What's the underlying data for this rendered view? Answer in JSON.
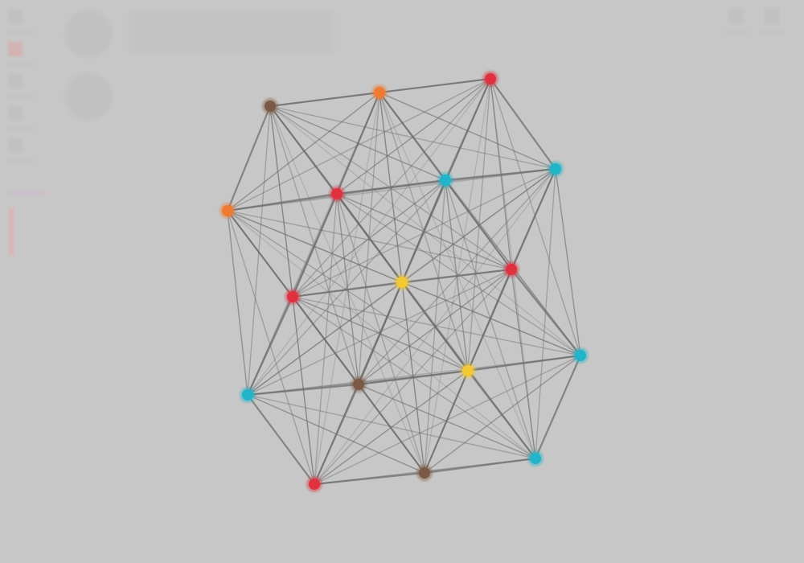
{
  "graph": {
    "node_colors": {
      "red": "#e0313f",
      "orange": "#f07a32",
      "brown": "#7a5a44",
      "cyan": "#22b4c9",
      "yellow": "#f1c933"
    },
    "edge_color": "#6e6e6e",
    "background": "#c7c7c7",
    "nodes": [
      {
        "id": "n1",
        "color": "red"
      },
      {
        "id": "n2",
        "color": "orange"
      },
      {
        "id": "n3",
        "color": "brown"
      },
      {
        "id": "n4",
        "color": "cyan"
      },
      {
        "id": "n5",
        "color": "cyan"
      },
      {
        "id": "n6",
        "color": "red"
      },
      {
        "id": "n7",
        "color": "orange"
      },
      {
        "id": "n8",
        "color": "red"
      },
      {
        "id": "n9",
        "color": "yellow"
      },
      {
        "id": "n10",
        "color": "red"
      },
      {
        "id": "n11",
        "color": "cyan"
      },
      {
        "id": "n12",
        "color": "yellow"
      },
      {
        "id": "n13",
        "color": "brown"
      },
      {
        "id": "n14",
        "color": "cyan"
      },
      {
        "id": "n15",
        "color": "cyan"
      },
      {
        "id": "n16",
        "color": "brown"
      },
      {
        "id": "n17",
        "color": "red"
      }
    ],
    "edges_all_pairs": true
  },
  "ui": {
    "panel_icons": [
      "tool-icon",
      "tool-icon",
      "tool-icon",
      "tool-icon",
      "tool-icon"
    ],
    "top_right_icons": [
      "settings-icon",
      "fullscreen-icon"
    ]
  }
}
